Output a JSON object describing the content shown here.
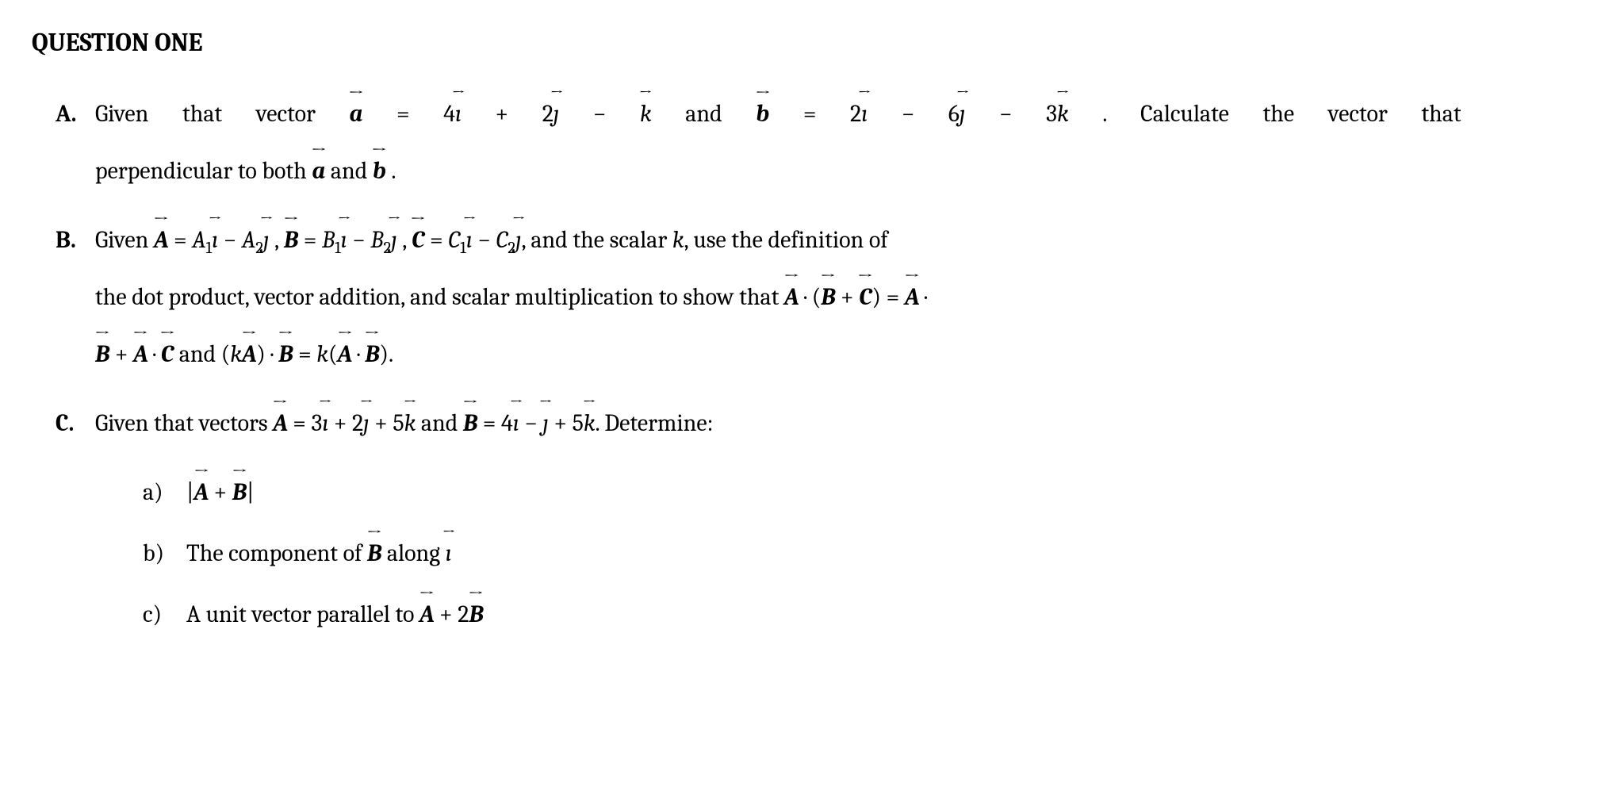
{
  "title": "QUESTION ONE",
  "parts": {
    "A": {
      "label": "A.",
      "line1_prefix": "Given that vector ",
      "vec_a": "a",
      "eq1": " = 4",
      "i": "ı",
      "plus": " + 2",
      "j": "ȷ",
      "minus": " − ",
      "k": "k",
      "and": " and ",
      "vec_b": "b",
      "eq2": " = 2",
      "minus6": " − 6",
      "minus3": " − 3",
      "period_calc": " . Calculate the vector that",
      "line2": "perpendicular to both ",
      "and2": " and ",
      "period": " ."
    },
    "B": {
      "label": "B.",
      "given": "Given ",
      "A": "A",
      "eq": " = ",
      "A1": "A",
      "sub1": "1",
      "minus": " − ",
      "A2": "A",
      "sub2": "2",
      "comma": " , ",
      "B": "B",
      "B1": "B",
      "B2": "B",
      "C": "C",
      "C1": "C",
      "C2": "C",
      "scalar_text": ", and the scalar ",
      "k_var": "k",
      "use_def": ", use the definition of",
      "line2": "the dot product, vector addition, and scalar multiplication to show that ",
      "dot": " · ",
      "lparen": "(",
      "plus": " + ",
      "rparen": ")",
      "eqsign": " = ",
      "dotend": " ·",
      "line3_and": " and ",
      "k": "k",
      "period": "."
    },
    "C": {
      "label": "C.",
      "given": "Given that vectors ",
      "A": "A",
      "eq": " = 3",
      "plus2": " + 2",
      "plus5": " + 5",
      "and": " and ",
      "B": "B",
      "eq4": " = 4",
      "minus": " − ",
      "determine": ". Determine:",
      "sub_a": {
        "label": "a)",
        "bar1": "|",
        "plus": " + ",
        "bar2": "|"
      },
      "sub_b": {
        "label": "b)",
        "text": "The component of ",
        "along": " along "
      },
      "sub_c": {
        "label": "c)",
        "text": "A unit vector parallel to ",
        "plus2": " + 2"
      }
    }
  }
}
